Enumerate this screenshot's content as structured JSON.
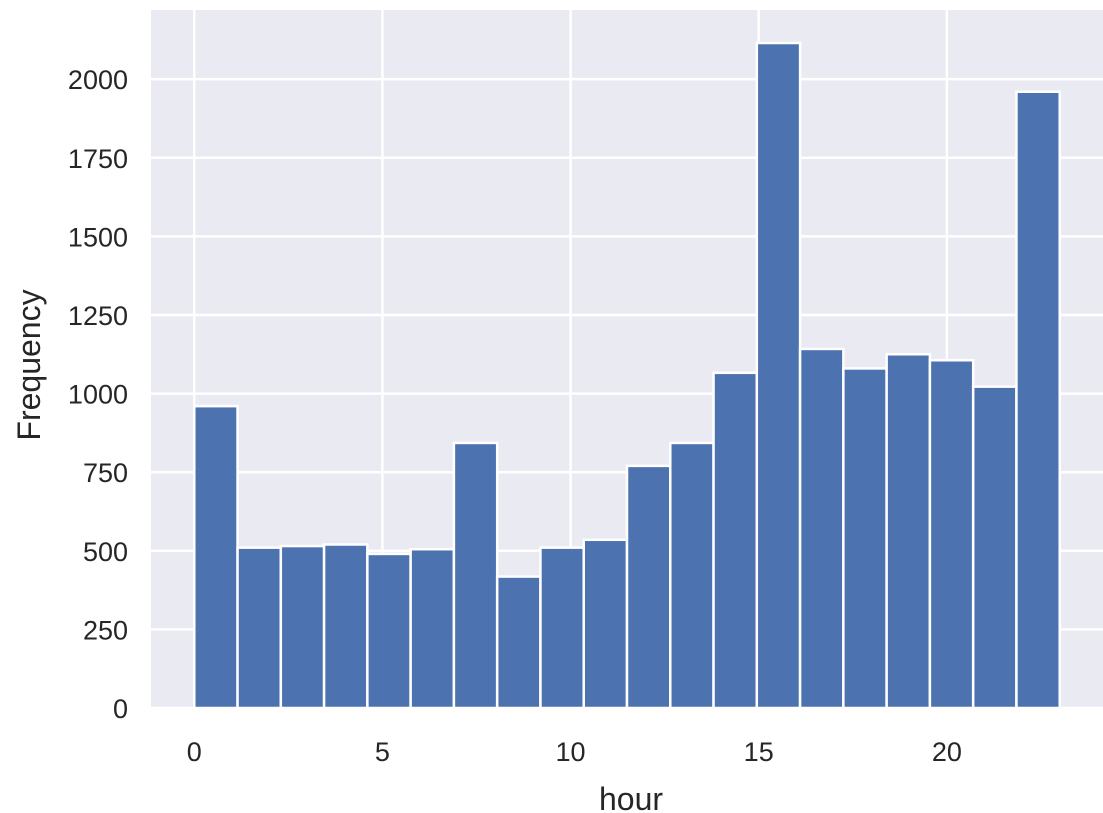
{
  "chart_data": {
    "type": "bar",
    "subtype": "histogram",
    "xlabel": "hour",
    "ylabel": "Frequency",
    "bin_range": [
      0,
      23
    ],
    "bin_count": 20,
    "bin_width": 1.15,
    "values": [
      960,
      510,
      515,
      520,
      490,
      505,
      843,
      418,
      510,
      535,
      770,
      843,
      1066,
      2115,
      1142,
      1080,
      1125,
      1106,
      1022,
      1960
    ],
    "xlim": [
      -1.15,
      24.15
    ],
    "ylim": [
      0,
      2220
    ],
    "x_ticks": [
      0,
      5,
      10,
      15,
      20
    ],
    "y_ticks": [
      0,
      250,
      500,
      750,
      1000,
      1250,
      1500,
      1750,
      2000
    ],
    "grid": true,
    "colors": {
      "plot_background": "#eaeaf2",
      "bar": "#4c72b0",
      "bar_edge": "#ffffff",
      "grid": "#ffffff",
      "text": "#262626"
    }
  }
}
